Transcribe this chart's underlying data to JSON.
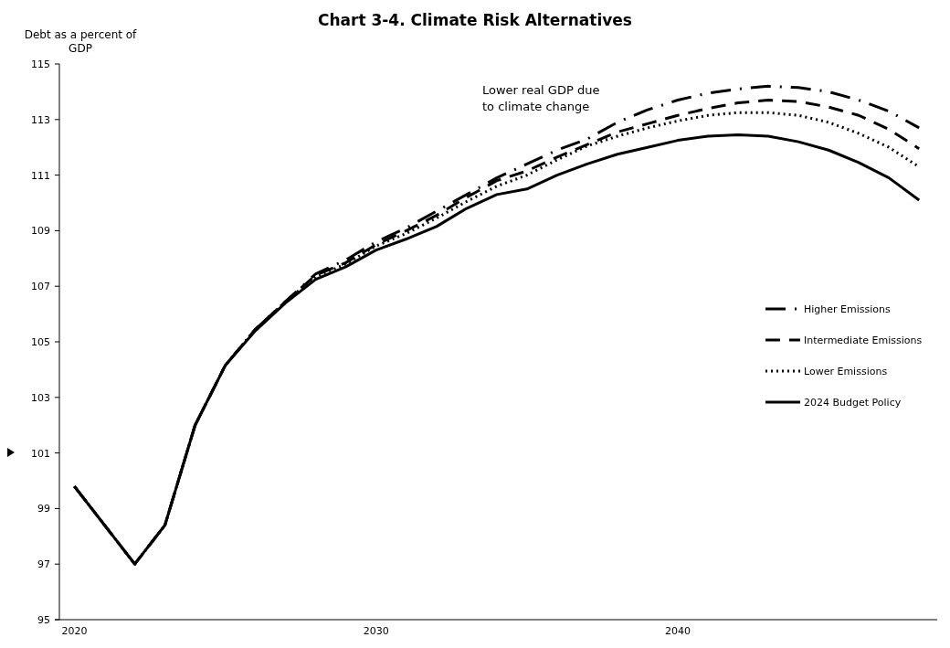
{
  "chart_data": {
    "type": "line",
    "title": "Chart 3-4. Climate Risk Alternatives",
    "ylabel": "Debt as a percent of GDP",
    "annotations": [
      "Lower real GDP due to climate change"
    ],
    "x": [
      2020,
      2021,
      2022,
      2023,
      2024,
      2025,
      2026,
      2027,
      2028,
      2029,
      2030,
      2031,
      2032,
      2033,
      2034,
      2035,
      2036,
      2037,
      2038,
      2039,
      2040,
      2041,
      2042,
      2043,
      2044,
      2045,
      2046,
      2047,
      2048
    ],
    "series": [
      {
        "name": "Higher Emissions",
        "color": "#000000",
        "line_style": "dashdot",
        "values": [
          99.8,
          98.4,
          97.0,
          98.4,
          102.0,
          104.15,
          105.45,
          106.45,
          107.45,
          107.95,
          108.6,
          109.1,
          109.7,
          110.3,
          110.9,
          111.4,
          111.9,
          112.3,
          112.9,
          113.35,
          113.7,
          113.95,
          114.1,
          114.2,
          114.15,
          114.0,
          113.7,
          113.3,
          112.7
        ]
      },
      {
        "name": "Intermediate Emissions",
        "color": "#000000",
        "line_style": "dashed",
        "values": [
          99.8,
          98.4,
          97.0,
          98.4,
          102.0,
          104.15,
          105.45,
          106.45,
          107.4,
          107.85,
          108.5,
          109.0,
          109.55,
          110.2,
          110.8,
          111.15,
          111.65,
          112.1,
          112.55,
          112.85,
          113.15,
          113.4,
          113.6,
          113.7,
          113.65,
          113.45,
          113.15,
          112.65,
          111.95
        ]
      },
      {
        "name": "Lower Emissions",
        "color": "#000000",
        "line_style": "dotted",
        "values": [
          99.8,
          98.4,
          97.0,
          98.4,
          102.0,
          104.15,
          105.45,
          106.45,
          107.35,
          107.8,
          108.45,
          108.9,
          109.45,
          110.05,
          110.6,
          111.0,
          111.55,
          112.05,
          112.4,
          112.7,
          112.95,
          113.15,
          113.25,
          113.25,
          113.15,
          112.9,
          112.5,
          112.0,
          111.3
        ]
      },
      {
        "name": "2024 Budget Policy",
        "color": "#000000",
        "line_style": "solid",
        "values": [
          99.8,
          98.4,
          97.0,
          98.4,
          102.0,
          104.15,
          105.4,
          106.4,
          107.25,
          107.7,
          108.3,
          108.7,
          109.15,
          109.8,
          110.3,
          110.5,
          111.0,
          111.4,
          111.75,
          112.0,
          112.25,
          112.4,
          112.45,
          112.4,
          112.2,
          111.9,
          111.45,
          110.9,
          110.1
        ]
      }
    ],
    "xlim": [
      2019.35,
      2048.6
    ],
    "xticks": [
      2020,
      2030,
      2040
    ],
    "ylim": [
      95,
      115
    ],
    "yticks": [
      95,
      97,
      99,
      101,
      103,
      105,
      107,
      109,
      111,
      113,
      115
    ],
    "legend": "right",
    "grid": false
  }
}
